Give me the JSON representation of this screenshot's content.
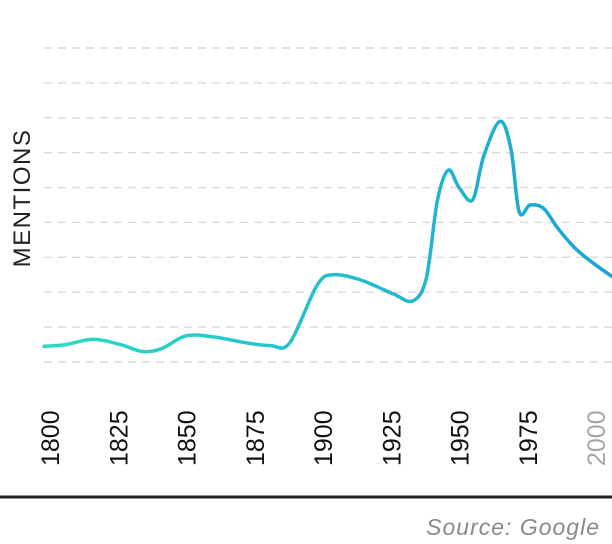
{
  "chart_data": {
    "type": "line",
    "ylabel": "MENTIONS",
    "source": "Source: Google",
    "x_ticks": [
      {
        "label": "1800",
        "value": 1800,
        "muted": false
      },
      {
        "label": "1825",
        "value": 1825,
        "muted": false
      },
      {
        "label": "1850",
        "value": 1850,
        "muted": false
      },
      {
        "label": "1875",
        "value": 1875,
        "muted": false
      },
      {
        "label": "1900",
        "value": 1900,
        "muted": false
      },
      {
        "label": "1925",
        "value": 1925,
        "muted": false
      },
      {
        "label": "1950",
        "value": 1950,
        "muted": false
      },
      {
        "label": "1975",
        "value": 1975,
        "muted": false
      },
      {
        "label": "2000",
        "value": 2000,
        "muted": true
      }
    ],
    "xlim": [
      1800,
      2008
    ],
    "ylim": [
      0,
      9
    ],
    "grid": true,
    "gridlines": 10,
    "series": [
      {
        "name": "",
        "color_start": "#2bdcc2",
        "color_end": "#1aa3d6",
        "points": [
          [
            1800,
            0.45
          ],
          [
            1808,
            0.5
          ],
          [
            1818,
            0.65
          ],
          [
            1828,
            0.5
          ],
          [
            1836,
            0.3
          ],
          [
            1843,
            0.38
          ],
          [
            1852,
            0.75
          ],
          [
            1862,
            0.72
          ],
          [
            1874,
            0.55
          ],
          [
            1883,
            0.47
          ],
          [
            1890,
            0.55
          ],
          [
            1900,
            2.2
          ],
          [
            1906,
            2.5
          ],
          [
            1916,
            2.35
          ],
          [
            1928,
            1.95
          ],
          [
            1935,
            1.75
          ],
          [
            1940,
            2.4
          ],
          [
            1944,
            4.6
          ],
          [
            1948,
            5.5
          ],
          [
            1952,
            5.0
          ],
          [
            1957,
            4.65
          ],
          [
            1961,
            5.9
          ],
          [
            1967,
            6.9
          ],
          [
            1971,
            6.1
          ],
          [
            1974,
            4.3
          ],
          [
            1978,
            4.5
          ],
          [
            1983,
            4.4
          ],
          [
            1988,
            3.85
          ],
          [
            1994,
            3.3
          ],
          [
            2000,
            2.9
          ],
          [
            2008,
            2.45
          ]
        ]
      }
    ]
  }
}
